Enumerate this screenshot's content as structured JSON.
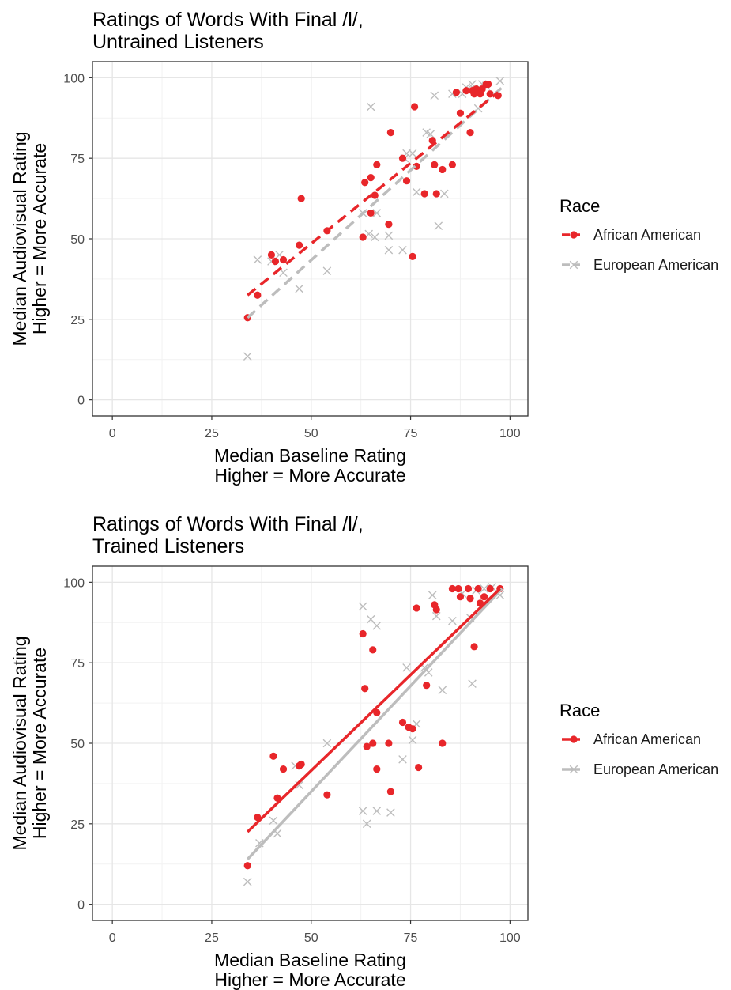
{
  "colors": {
    "african_american": "#e8262a",
    "european_american": "#bdbdbd",
    "panel_border": "#333333",
    "grid_major": "#e6e6e6",
    "grid_minor": "#f2f2f2"
  },
  "chart_data": [
    {
      "type": "scatter",
      "title_line1": "Ratings of Words With Final /l/,",
      "title_line2": "Untrained Listeners",
      "xlabel_line1": "Median Baseline Rating",
      "xlabel_line2": "Higher = More Accurate",
      "ylabel_line1": "Median Audiovisual Rating",
      "ylabel_line2": "Higher = More Accurate",
      "xlim": [
        -5,
        104.5
      ],
      "ylim": [
        -5,
        105
      ],
      "x_ticks": [
        0,
        25,
        50,
        75,
        100
      ],
      "y_ticks": [
        0,
        25,
        50,
        75,
        100
      ],
      "grid": true,
      "legend_title": "Race",
      "legend_position": "right",
      "fit_line_style": "dashed",
      "series": [
        {
          "name": "African American",
          "color_key": "african_american",
          "marker": "circle",
          "fit": {
            "x": [
              34,
              97
            ],
            "y": [
              32.5,
              95.5
            ]
          },
          "points": [
            [
              34,
              25.5
            ],
            [
              36.5,
              32.5
            ],
            [
              40,
              45
            ],
            [
              41,
              43
            ],
            [
              43,
              43.5
            ],
            [
              47,
              48
            ],
            [
              47.5,
              62.5
            ],
            [
              54,
              52.5
            ],
            [
              63,
              50.5
            ],
            [
              63.5,
              67.5
            ],
            [
              65,
              69
            ],
            [
              65,
              58
            ],
            [
              66,
              63.5
            ],
            [
              66.5,
              73
            ],
            [
              69.5,
              54.5
            ],
            [
              70,
              83
            ],
            [
              73,
              75
            ],
            [
              74,
              68
            ],
            [
              75.5,
              44.5
            ],
            [
              76,
              91
            ],
            [
              76.5,
              72.5
            ],
            [
              78.5,
              64
            ],
            [
              80.5,
              80.5
            ],
            [
              81,
              73
            ],
            [
              81.5,
              64
            ],
            [
              83,
              71.5
            ],
            [
              85.5,
              73
            ],
            [
              86.5,
              95.5
            ],
            [
              87.5,
              89
            ],
            [
              89,
              96
            ],
            [
              90,
              83
            ],
            [
              90.5,
              96
            ],
            [
              91,
              95
            ],
            [
              91.5,
              96.5
            ],
            [
              92,
              96
            ],
            [
              92.5,
              95
            ],
            [
              93,
              96.5
            ],
            [
              94,
              98
            ],
            [
              94.5,
              98
            ],
            [
              95,
              95
            ],
            [
              97,
              94.5
            ]
          ]
        },
        {
          "name": "European American",
          "color_key": "european_american",
          "marker": "x",
          "fit": {
            "x": [
              34,
              98
            ],
            "y": [
              25.5,
              97
            ]
          },
          "points": [
            [
              34,
              13.5
            ],
            [
              36.5,
              43.5
            ],
            [
              40,
              43
            ],
            [
              42,
              45
            ],
            [
              43,
              39.5
            ],
            [
              47,
              34.5
            ],
            [
              54,
              40
            ],
            [
              63,
              58
            ],
            [
              64.5,
              51.5
            ],
            [
              65,
              91
            ],
            [
              66,
              50.5
            ],
            [
              66.5,
              58
            ],
            [
              69.5,
              46.5
            ],
            [
              69.5,
              51
            ],
            [
              73,
              46.5
            ],
            [
              73.5,
              75
            ],
            [
              74,
              76.5
            ],
            [
              75.5,
              76.5
            ],
            [
              76.5,
              64.5
            ],
            [
              79,
              83
            ],
            [
              80,
              82.5
            ],
            [
              81,
              94.5
            ],
            [
              82,
              54
            ],
            [
              83.5,
              64
            ],
            [
              85.5,
              95
            ],
            [
              88,
              95
            ],
            [
              89,
              97
            ],
            [
              90.5,
              98
            ],
            [
              91,
              96.5
            ],
            [
              92,
              90.5
            ],
            [
              93,
              98
            ],
            [
              94,
              97.5
            ],
            [
              97.5,
              99
            ]
          ]
        }
      ]
    },
    {
      "type": "scatter",
      "title_line1": "Ratings of Words With Final /l/,",
      "title_line2": "Trained Listeners",
      "xlabel_line1": "Median Baseline Rating",
      "xlabel_line2": "Higher = More Accurate",
      "ylabel_line1": "Median Audiovisual Rating",
      "ylabel_line2": "Higher = More Accurate",
      "xlim": [
        -5,
        104.5
      ],
      "ylim": [
        -5,
        105
      ],
      "x_ticks": [
        0,
        25,
        50,
        75,
        100
      ],
      "y_ticks": [
        0,
        25,
        50,
        75,
        100
      ],
      "grid": true,
      "legend_title": "Race",
      "legend_position": "right",
      "fit_line_style": "solid",
      "series": [
        {
          "name": "African American",
          "color_key": "african_american",
          "marker": "circle",
          "fit": {
            "x": [
              34,
              97.5
            ],
            "y": [
              22.5,
              98
            ]
          },
          "points": [
            [
              34,
              12
            ],
            [
              36.5,
              27
            ],
            [
              40.5,
              46
            ],
            [
              41.5,
              33
            ],
            [
              43,
              42
            ],
            [
              47,
              43
            ],
            [
              47.5,
              43.5
            ],
            [
              54,
              34
            ],
            [
              63,
              84
            ],
            [
              63.5,
              67
            ],
            [
              64,
              49
            ],
            [
              65.5,
              50
            ],
            [
              65.5,
              79
            ],
            [
              66.5,
              42
            ],
            [
              66.5,
              59.5
            ],
            [
              69.5,
              50
            ],
            [
              70,
              35
            ],
            [
              73,
              56.5
            ],
            [
              74.5,
              55
            ],
            [
              75.5,
              54.5
            ],
            [
              76.5,
              92
            ],
            [
              77,
              42.5
            ],
            [
              79,
              68
            ],
            [
              81,
              93
            ],
            [
              81.5,
              91.5
            ],
            [
              83,
              50
            ],
            [
              85.5,
              98
            ],
            [
              87,
              98
            ],
            [
              87.5,
              95.5
            ],
            [
              89.5,
              98
            ],
            [
              90,
              95
            ],
            [
              91,
              80
            ],
            [
              92,
              98
            ],
            [
              92.5,
              93.5
            ],
            [
              93.5,
              95.5
            ],
            [
              95,
              98
            ],
            [
              97.5,
              98
            ]
          ]
        },
        {
          "name": "European American",
          "color_key": "european_american",
          "marker": "x",
          "fit": {
            "x": [
              34,
              98
            ],
            "y": [
              14,
              98
            ]
          },
          "points": [
            [
              34,
              7
            ],
            [
              37,
              19
            ],
            [
              40.5,
              26
            ],
            [
              41.5,
              22
            ],
            [
              46,
              43
            ],
            [
              47,
              37
            ],
            [
              54,
              50
            ],
            [
              63,
              92.5
            ],
            [
              63,
              29
            ],
            [
              64,
              25
            ],
            [
              65,
              88.5
            ],
            [
              66.5,
              86.5
            ],
            [
              66.5,
              29
            ],
            [
              70,
              28.5
            ],
            [
              73,
              45
            ],
            [
              74,
              73.5
            ],
            [
              75.5,
              51
            ],
            [
              76.5,
              56
            ],
            [
              78.5,
              73.5
            ],
            [
              79.5,
              72
            ],
            [
              80.5,
              96
            ],
            [
              81.5,
              89.5
            ],
            [
              83,
              66.5
            ],
            [
              85.5,
              88
            ],
            [
              88,
              96.5
            ],
            [
              90,
              89
            ],
            [
              90.5,
              68.5
            ],
            [
              91.5,
              97.5
            ],
            [
              93.5,
              98
            ],
            [
              95.5,
              98.5
            ],
            [
              97.5,
              96
            ]
          ]
        }
      ]
    }
  ]
}
